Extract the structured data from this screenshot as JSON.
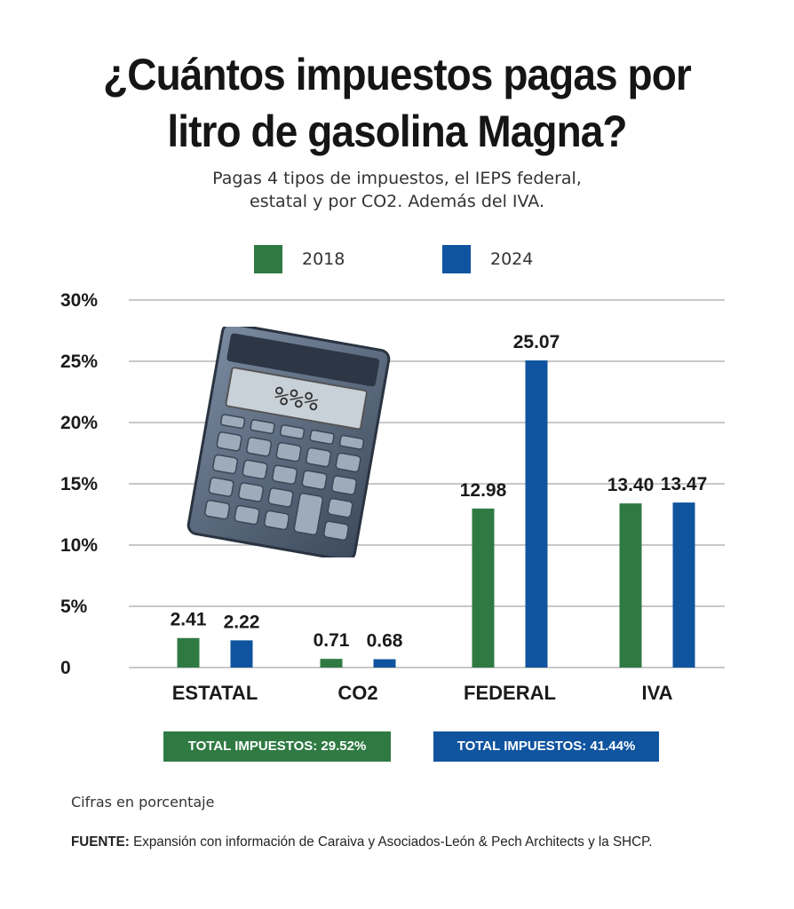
{
  "title_line1": "¿Cuántos impuestos pagas por",
  "title_line2": "litro de gasolina Magna?",
  "subtitle_line1": "Pagas 4 tipos de impuestos, el IEPS federal,",
  "subtitle_line2": "estatal y por CO2. Además del IVA.",
  "colors": {
    "s2018": "#2f7a43",
    "s2024": "#10549f",
    "grid": "#c8c8c8"
  },
  "calculator_display": "%%%",
  "chart_data": {
    "type": "bar",
    "title": "¿Cuántos impuestos pagas por litro de gasolina Magna?",
    "categories": [
      "ESTATAL",
      "CO2",
      "FEDERAL",
      "IVA"
    ],
    "series": [
      {
        "name": "2018",
        "values": [
          2.41,
          0.71,
          12.98,
          13.4
        ],
        "labels": [
          "2.41",
          "0.71",
          "12.98",
          "13.40"
        ]
      },
      {
        "name": "2024",
        "values": [
          2.22,
          0.68,
          25.07,
          13.47
        ],
        "labels": [
          "2.22",
          "0.68",
          "25.07",
          "13.47"
        ]
      }
    ],
    "yticks": [
      0,
      5,
      10,
      15,
      20,
      25,
      30
    ],
    "ytick_labels": [
      "0",
      "5%",
      "10%",
      "15%",
      "20%",
      "25%",
      "30%"
    ],
    "ylim": [
      0,
      30
    ],
    "xlabel": "",
    "ylabel": "",
    "legend": "top-center",
    "grid": true
  },
  "totals": {
    "t2018": "TOTAL IMPUESTOS: 29.52%",
    "t2024": "TOTAL IMPUESTOS: 41.44%"
  },
  "note": "Cifras en porcentaje",
  "source_label": "FUENTE:",
  "source_text": " Expansión con información de Caraiva y Asociados-León & Pech Architects y la  SHCP."
}
